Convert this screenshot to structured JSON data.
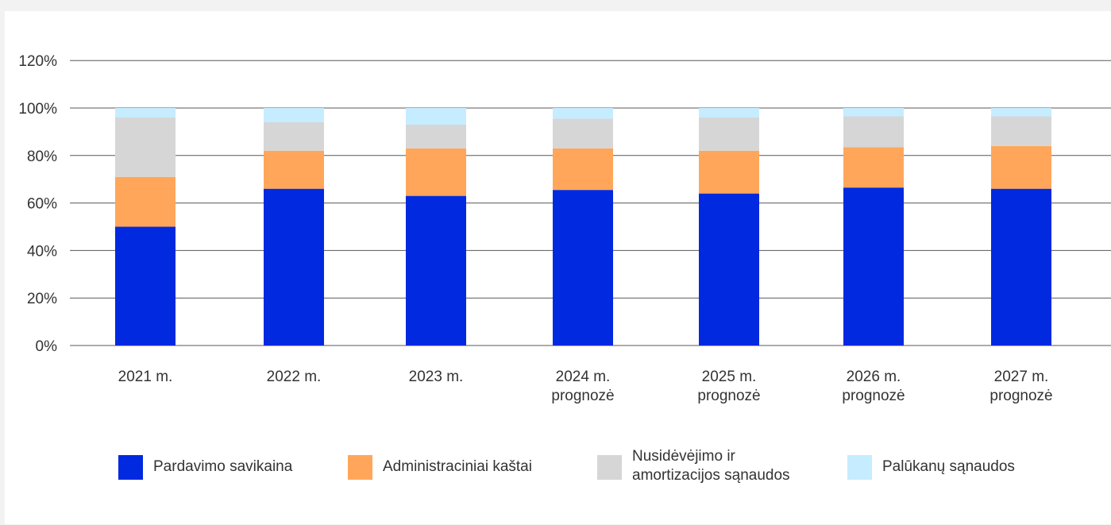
{
  "chart_data": {
    "type": "bar",
    "stacked": true,
    "title": "",
    "xlabel": "",
    "ylabel": "",
    "ylim": [
      0,
      120
    ],
    "yticks": [
      "0%",
      "20%",
      "40%",
      "60%",
      "80%",
      "100%",
      "120%"
    ],
    "grid": true,
    "legend_position": "bottom",
    "categories": [
      [
        "2021 m."
      ],
      [
        "2022 m."
      ],
      [
        "2023 m."
      ],
      [
        "2024 m.",
        "prognozė"
      ],
      [
        "2025 m.",
        "prognozė"
      ],
      [
        "2026 m.",
        "prognozė"
      ],
      [
        "2027 m.",
        "prognozė"
      ]
    ],
    "series": [
      {
        "name": "Pardavimo savikaina",
        "color": "#0029e0",
        "values": [
          50,
          66,
          63,
          65.5,
          64,
          66.5,
          66
        ]
      },
      {
        "name": "Administraciniai kaštai",
        "color": "#ffa65a",
        "values": [
          21,
          16,
          20,
          17.5,
          18,
          17,
          18
        ]
      },
      {
        "name": [
          "Nusidėvėjimo ir",
          "amortizacijos sąnaudos"
        ],
        "color": "#d6d6d6",
        "values": [
          25,
          12,
          10,
          12.5,
          14,
          13,
          12.5
        ]
      },
      {
        "name": "Palūkanų sąnaudos",
        "color": "#c6ecff",
        "values": [
          4,
          6,
          7,
          4.5,
          4,
          3.5,
          3.5
        ]
      }
    ]
  }
}
